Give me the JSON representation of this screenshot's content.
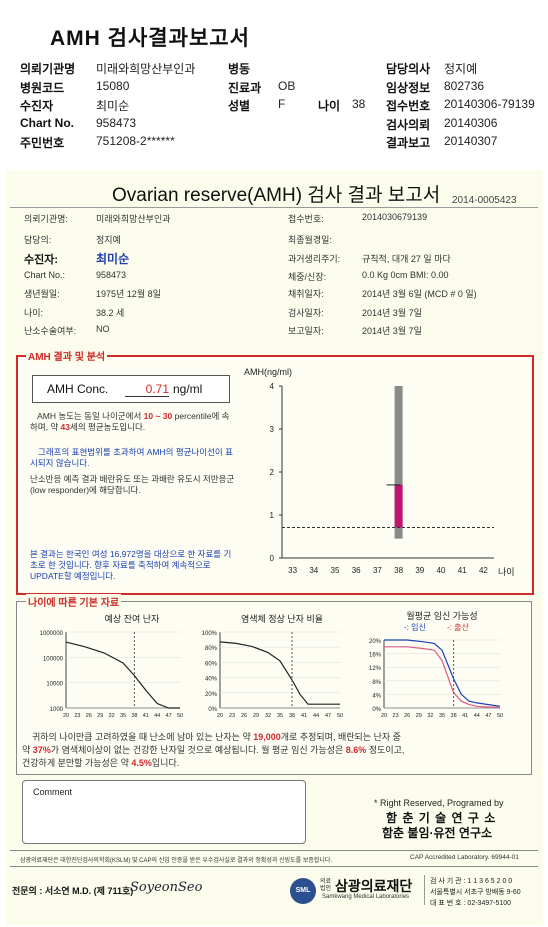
{
  "header": {
    "title": "AMH 검사결과보고서",
    "rows": [
      {
        "k1": "의뢰기관명",
        "v1": "미래와희망산부인과",
        "k2": "병동",
        "v2": "",
        "k3": "",
        "v3": "",
        "k4": "담당의사",
        "v4": "정지예"
      },
      {
        "k1": "병원코드",
        "v1": "15080",
        "k2": "진료과",
        "v2": "OB",
        "k3": "",
        "v3": "",
        "k4": "임상정보",
        "v4": "802736"
      },
      {
        "k1": "수진자",
        "v1": "최미순",
        "k2": "성별",
        "v2": "F",
        "k3": "나이",
        "v3": "38",
        "k4": "접수번호",
        "v4": "20140306-79139"
      },
      {
        "k1": "Chart No.",
        "v1": "958473",
        "k2": "",
        "v2": "",
        "k3": "",
        "v3": "",
        "k4": "검사의뢰",
        "v4": "20140306"
      },
      {
        "k1": "주민번호",
        "v1": "751208-2******",
        "k2": "",
        "v2": "",
        "k3": "",
        "v3": "",
        "k4": "결과보고",
        "v4": "20140307"
      }
    ]
  },
  "report": {
    "title": "Ovarian reserve(AMH) 검사 결과 보고서",
    "number": "2014-0005423",
    "left": [
      {
        "k": "의뢰기관명:",
        "v": "미래와희망산부인과"
      },
      {
        "k": "담당의:",
        "v": "정지예"
      },
      {
        "k": "수진자:",
        "v": "최미순"
      },
      {
        "k": "Chart No.:",
        "v": "958473"
      },
      {
        "k": "생년월일:",
        "v": "1975년 12월 8일"
      },
      {
        "k": "나이:",
        "v": "38.2 세"
      },
      {
        "k": "난소수술여부:",
        "v": "NO"
      }
    ],
    "right": [
      {
        "k": "접수번호:",
        "v": "2014030679139"
      },
      {
        "k": "최종월경일:",
        "v": ""
      },
      {
        "k": "과거생리주기:",
        "v": "규칙적, 대개  27 일 마다"
      },
      {
        "k": "체중/신장:",
        "v": "0.0 Kg       0cm   BMI:   0.00"
      },
      {
        "k": "채취일자:",
        "v": "2014년 3월 6일     (MCD # 0 일)"
      },
      {
        "k": "검사일자:",
        "v": "2014년 3월 7일"
      },
      {
        "k": "보고일자:",
        "v": "2014년 3월 7일"
      }
    ]
  },
  "amh": {
    "section_title": "AMH 결과 및 분석",
    "conc_label": "AMH Conc.",
    "conc_value": "0.71",
    "conc_unit": "ng/ml",
    "p1a": "AMH 농도는 동일 나이군에서 ",
    "p1r": "10 ~ 30",
    "p1b": "percentile에 속하며, 약 ",
    "p1age": "43",
    "p1c": "세의 평균농도입니다.",
    "p2": "그래프의 표현범위를 초과하여 AMH의 평균나이선이 표시되지 않습니다.",
    "p3": "난소반응 예측 결과 배란유도 또는 과배란 유도시 저반응군 (low responder)에 해당합니다.",
    "p4": "본 결과는 한국인 여성 16,972명을 대상으로 한 자료를 기초로 한 것입니다. 향후 자료를 축적하여 계속적으로 UPDATE할 예정입니다.",
    "graph_ylabel": "AMH(ng/ml)",
    "graph_xlabel": "나이"
  },
  "basic": {
    "section_title": "나이에 따른 기본 자료",
    "chart1_title": "예상 잔여 난자",
    "chart2_title": "염색체 정상 난자 비율",
    "chart3_title": "월평균 임신 가능성",
    "legend_preg": "-: 임신",
    "legend_birth": "-: 출산",
    "s1": "귀하의 나이만큼 고려하였을 때 난소에 남아 있는 난자는 약 ",
    "s1n": "19,000",
    "s2": "개로 추정되며, 배란되는 난자 중",
    "s3": "약 ",
    "s3n": "37%",
    "s4": "가 염색체이상이 없는 건강한 난자일 것으로 예상됩니다. 월 평균 임신 가능성은 ",
    "s4n": "8.6%",
    "s5": " 정도이고,",
    "s6": "건강하게 분만할 가능성은 약 ",
    "s6n": "4.5%",
    "s7": "입니다."
  },
  "comment_label": "Comment",
  "rights": {
    "line1": "* Right Reserved, Programed by",
    "line2": "함 춘 기 술 연 구 소",
    "line3": "함춘 불임·유전 연구소"
  },
  "footer": {
    "cert": "삼광의료재단은 대한진단검사의학회(KSLM) 및 CAP의 신임 인증을 받은 우수검사실로 결과의 정확성과 신빙도를 보증합니다.",
    "cap": "CAP  Accredited  Laboratory.  69944-01",
    "doctor": "전문의 : 서소연 M.D. (제 711호)",
    "signature": "SoyeonSeo",
    "org_prefix": "의료법인",
    "org": "삼광의료재단",
    "org_en": "Samkwang Medical Laboratories",
    "logo_text": "SML",
    "code": "검 사 기 관 : 1 1 3 6 5 2 0 0",
    "addr": "서울특별시 서초구 방배동 9-60",
    "tel": "대 표 번 호 : 02-3497-5100"
  },
  "chart_data": [
    {
      "type": "scatter",
      "title": "",
      "ylabel": "AMH(ng/ml)",
      "xlabel": "나이",
      "x_ticks": [
        33,
        34,
        35,
        36,
        37,
        38,
        39,
        40,
        41,
        42
      ],
      "y_ticks": [
        0,
        1,
        2,
        3,
        4
      ],
      "xlim": [
        32.5,
        42.5
      ],
      "ylim": [
        0,
        4
      ],
      "grey_bar": {
        "x": 38,
        "y_range": [
          0.45,
          4.0
        ]
      },
      "pink_bar": {
        "x": 38,
        "y_range": [
          0.71,
          1.7
        ]
      },
      "marker_line_y": 1.7,
      "threshold_y": 0.71,
      "grid": false
    },
    {
      "type": "line",
      "title": "예상 잔여 난자",
      "y_log": true,
      "y_ticks": [
        1000,
        10000,
        100000,
        1000000
      ],
      "x_ticks": [
        20,
        23,
        26,
        29,
        32,
        35,
        38,
        41,
        44,
        47,
        50
      ],
      "series": [
        {
          "name": "",
          "x": [
            20,
            25,
            30,
            35,
            38,
            41,
            44,
            47,
            50
          ],
          "values": [
            400000,
            260000,
            150000,
            60000,
            19000,
            5000,
            1500,
            1000,
            1000
          ]
        }
      ],
      "marker_x": 38
    },
    {
      "type": "line",
      "title": "염색체 정상 난자 비율",
      "y_ticks": [
        "0%",
        "20%",
        "40%",
        "60%",
        "80%",
        "100%"
      ],
      "x_ticks": [
        20,
        23,
        26,
        29,
        32,
        35,
        38,
        41,
        44,
        47,
        50
      ],
      "series": [
        {
          "name": "",
          "x": [
            20,
            24,
            28,
            32,
            35,
            38,
            40,
            42,
            44,
            47,
            50
          ],
          "values": [
            87,
            85,
            81,
            73,
            62,
            37,
            18,
            5,
            5,
            5,
            5
          ]
        }
      ],
      "marker_x": 38
    },
    {
      "type": "line",
      "title": "월평균 임신 가능성",
      "y_ticks": [
        "0%",
        "4%",
        "8%",
        "12%",
        "16%",
        "20%"
      ],
      "x_ticks": [
        20,
        23,
        26,
        29,
        32,
        35,
        38,
        41,
        44,
        47,
        50
      ],
      "series": [
        {
          "name": "임신",
          "x": [
            20,
            26,
            30,
            33,
            35,
            38,
            40,
            42,
            44,
            47,
            50
          ],
          "values": [
            20,
            20,
            19.5,
            19,
            17,
            8.6,
            4,
            2,
            1.5,
            1,
            0.5
          ]
        },
        {
          "name": "출산",
          "x": [
            20,
            26,
            30,
            33,
            35,
            38,
            40,
            42,
            44,
            47,
            50
          ],
          "values": [
            18,
            18,
            17.5,
            17,
            14,
            4.5,
            2,
            1,
            0.5,
            0.3,
            0.2
          ]
        }
      ],
      "marker_x": 38
    }
  ]
}
